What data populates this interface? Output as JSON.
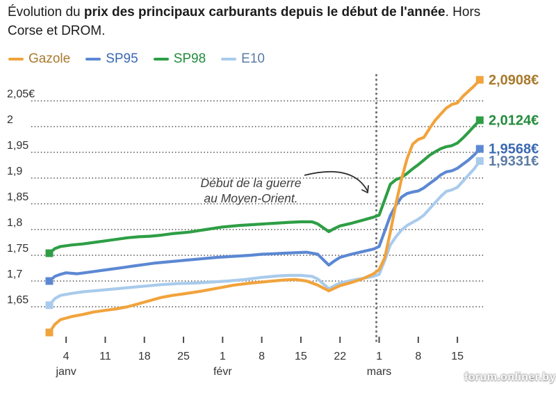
{
  "title": {
    "line1_prefix": "Évolution du ",
    "line1_bold": "prix des principaux carburants depuis le début de l'année",
    "line1_suffix": ". Hors",
    "line2": "Corse et DROM."
  },
  "legend": [
    {
      "id": "gazole",
      "label": "Gazole",
      "line_color": "#F1A33C",
      "text_color": "#A87A2B"
    },
    {
      "id": "sp95",
      "label": "SP95",
      "line_color": "#5C88D3",
      "text_color": "#3A68B2"
    },
    {
      "id": "sp98",
      "label": "SP98",
      "line_color": "#2E9E45",
      "text_color": "#218A3C"
    },
    {
      "id": "e10",
      "label": "E10",
      "line_color": "#A9CBEC",
      "text_color": "#5B7BA4"
    }
  ],
  "annotation": {
    "line1": "Début de la guerre",
    "line2": "au Moyen-Orient."
  },
  "watermark": "forum.onliner.by",
  "chart_data": {
    "type": "line",
    "title": "Évolution du prix des principaux carburants depuis le début de l'année. Hors Corse et DROM.",
    "x_unit": "days since January 1",
    "grid": true,
    "event_line": {
      "x_day": 58.5,
      "label": "Début de la guerre au Moyen-Orient."
    },
    "y_axis": {
      "currency": "EUR",
      "ylim": [
        1.57,
        2.1
      ],
      "ticks": [
        {
          "value": 2.05,
          "label": "2,05€"
        },
        {
          "value": 2.0,
          "label": "2"
        },
        {
          "value": 1.95,
          "label": "1,95"
        },
        {
          "value": 1.9,
          "label": "1,9"
        },
        {
          "value": 1.85,
          "label": "1,85"
        },
        {
          "value": 1.8,
          "label": "1,8"
        },
        {
          "value": 1.75,
          "label": "1,75"
        },
        {
          "value": 1.7,
          "label": "1,7"
        },
        {
          "value": 1.65,
          "label": "1,65"
        }
      ]
    },
    "x_axis": {
      "ticks": [
        {
          "day": 3,
          "label": "4",
          "month": "janv"
        },
        {
          "day": 10,
          "label": "11"
        },
        {
          "day": 17,
          "label": "18"
        },
        {
          "day": 24,
          "label": "25"
        },
        {
          "day": 31,
          "label": "1",
          "month": "févr"
        },
        {
          "day": 38,
          "label": "8"
        },
        {
          "day": 45,
          "label": "15"
        },
        {
          "day": 52,
          "label": "22"
        },
        {
          "day": 59,
          "label": "1",
          "month": "mars"
        },
        {
          "day": 66,
          "label": "8"
        },
        {
          "day": 73,
          "label": "15"
        }
      ]
    },
    "series": [
      {
        "id": "sp98",
        "name": "SP98",
        "color": "#2E9E45",
        "label_color": "#238C3B",
        "end_label": "2,0124€",
        "points": [
          [
            0,
            1.754
          ],
          [
            1,
            1.763
          ],
          [
            2,
            1.767
          ],
          [
            4,
            1.77
          ],
          [
            6,
            1.772
          ],
          [
            8,
            1.775
          ],
          [
            10,
            1.778
          ],
          [
            12,
            1.781
          ],
          [
            14,
            1.784
          ],
          [
            16,
            1.786
          ],
          [
            18,
            1.787
          ],
          [
            20,
            1.789
          ],
          [
            22,
            1.792
          ],
          [
            25,
            1.795
          ],
          [
            28,
            1.8
          ],
          [
            31,
            1.805
          ],
          [
            34,
            1.808
          ],
          [
            37,
            1.81
          ],
          [
            40,
            1.812
          ],
          [
            43,
            1.814
          ],
          [
            45,
            1.815
          ],
          [
            47,
            1.815
          ],
          [
            48,
            1.811
          ],
          [
            50,
            1.796
          ],
          [
            51,
            1.802
          ],
          [
            52,
            1.807
          ],
          [
            54,
            1.812
          ],
          [
            56,
            1.818
          ],
          [
            58,
            1.824
          ],
          [
            59,
            1.828
          ],
          [
            60,
            1.858
          ],
          [
            61,
            1.888
          ],
          [
            62,
            1.897
          ],
          [
            63,
            1.901
          ],
          [
            64,
            1.909
          ],
          [
            65,
            1.918
          ],
          [
            66,
            1.926
          ],
          [
            67,
            1.935
          ],
          [
            68,
            1.944
          ],
          [
            69,
            1.951
          ],
          [
            70,
            1.957
          ],
          [
            71,
            1.961
          ],
          [
            72,
            1.963
          ],
          [
            73,
            1.968
          ],
          [
            74,
            1.978
          ],
          [
            75,
            1.989
          ],
          [
            76,
            2.001
          ],
          [
            77,
            2.0124
          ]
        ]
      },
      {
        "id": "sp95",
        "name": "SP95",
        "color": "#5C88D3",
        "label_color": "#3A68B2",
        "end_label": "1,9568€",
        "points": [
          [
            0,
            1.7
          ],
          [
            1,
            1.709
          ],
          [
            2,
            1.713
          ],
          [
            3,
            1.716
          ],
          [
            5,
            1.714
          ],
          [
            7,
            1.717
          ],
          [
            9,
            1.72
          ],
          [
            11,
            1.723
          ],
          [
            13,
            1.726
          ],
          [
            15,
            1.729
          ],
          [
            17,
            1.732
          ],
          [
            19,
            1.735
          ],
          [
            21,
            1.737
          ],
          [
            24,
            1.74
          ],
          [
            27,
            1.743
          ],
          [
            30,
            1.746
          ],
          [
            33,
            1.748
          ],
          [
            36,
            1.75
          ],
          [
            38,
            1.752
          ],
          [
            40,
            1.753
          ],
          [
            42,
            1.754
          ],
          [
            44,
            1.755
          ],
          [
            46,
            1.756
          ],
          [
            48,
            1.752
          ],
          [
            50,
            1.731
          ],
          [
            51,
            1.739
          ],
          [
            52,
            1.746
          ],
          [
            54,
            1.752
          ],
          [
            56,
            1.757
          ],
          [
            58,
            1.762
          ],
          [
            59,
            1.767
          ],
          [
            60,
            1.797
          ],
          [
            61,
            1.827
          ],
          [
            62,
            1.847
          ],
          [
            63,
            1.863
          ],
          [
            64,
            1.87
          ],
          [
            65,
            1.873
          ],
          [
            66,
            1.875
          ],
          [
            67,
            1.881
          ],
          [
            68,
            1.889
          ],
          [
            69,
            1.897
          ],
          [
            70,
            1.906
          ],
          [
            71,
            1.912
          ],
          [
            72,
            1.914
          ],
          [
            73,
            1.919
          ],
          [
            74,
            1.927
          ],
          [
            75,
            1.935
          ],
          [
            76,
            1.945
          ],
          [
            77,
            1.9568
          ]
        ]
      },
      {
        "id": "e10",
        "name": "E10",
        "color": "#A9CBEC",
        "label_color": "#5B7BA4",
        "end_label": "1,9331€",
        "points": [
          [
            0,
            1.653
          ],
          [
            1,
            1.666
          ],
          [
            2,
            1.672
          ],
          [
            4,
            1.676
          ],
          [
            6,
            1.679
          ],
          [
            8,
            1.681
          ],
          [
            10,
            1.683
          ],
          [
            12,
            1.685
          ],
          [
            14,
            1.687
          ],
          [
            16,
            1.689
          ],
          [
            18,
            1.691
          ],
          [
            20,
            1.693
          ],
          [
            23,
            1.695
          ],
          [
            26,
            1.696
          ],
          [
            29,
            1.698
          ],
          [
            32,
            1.7
          ],
          [
            35,
            1.703
          ],
          [
            38,
            1.707
          ],
          [
            41,
            1.71
          ],
          [
            43,
            1.711
          ],
          [
            45,
            1.711
          ],
          [
            47,
            1.709
          ],
          [
            48,
            1.704
          ],
          [
            50,
            1.685
          ],
          [
            51,
            1.691
          ],
          [
            52,
            1.696
          ],
          [
            54,
            1.701
          ],
          [
            56,
            1.705
          ],
          [
            58,
            1.709
          ],
          [
            59,
            1.713
          ],
          [
            60,
            1.74
          ],
          [
            61,
            1.77
          ],
          [
            62,
            1.786
          ],
          [
            63,
            1.799
          ],
          [
            64,
            1.808
          ],
          [
            65,
            1.814
          ],
          [
            66,
            1.82
          ],
          [
            67,
            1.828
          ],
          [
            68,
            1.84
          ],
          [
            69,
            1.852
          ],
          [
            70,
            1.864
          ],
          [
            71,
            1.874
          ],
          [
            72,
            1.877
          ],
          [
            73,
            1.882
          ],
          [
            74,
            1.894
          ],
          [
            75,
            1.906
          ],
          [
            76,
            1.918
          ],
          [
            77,
            1.9331
          ]
        ]
      },
      {
        "id": "gazole",
        "name": "Gazole",
        "color": "#F1A33C",
        "label_color": "#A87A2B",
        "end_label": "2,0908€",
        "points": [
          [
            0,
            1.6
          ],
          [
            1,
            1.616
          ],
          [
            2,
            1.625
          ],
          [
            4,
            1.631
          ],
          [
            6,
            1.635
          ],
          [
            8,
            1.64
          ],
          [
            10,
            1.643
          ],
          [
            12,
            1.646
          ],
          [
            14,
            1.65
          ],
          [
            16,
            1.656
          ],
          [
            18,
            1.662
          ],
          [
            20,
            1.668
          ],
          [
            22,
            1.672
          ],
          [
            24,
            1.675
          ],
          [
            27,
            1.68
          ],
          [
            30,
            1.686
          ],
          [
            33,
            1.692
          ],
          [
            36,
            1.696
          ],
          [
            39,
            1.699
          ],
          [
            42,
            1.702
          ],
          [
            44,
            1.703
          ],
          [
            46,
            1.7
          ],
          [
            48,
            1.692
          ],
          [
            50,
            1.681
          ],
          [
            51,
            1.686
          ],
          [
            52,
            1.691
          ],
          [
            54,
            1.697
          ],
          [
            56,
            1.704
          ],
          [
            58,
            1.714
          ],
          [
            59,
            1.722
          ],
          [
            60,
            1.745
          ],
          [
            61,
            1.795
          ],
          [
            62,
            1.85
          ],
          [
            63,
            1.898
          ],
          [
            64,
            1.938
          ],
          [
            65,
            1.966
          ],
          [
            66,
            1.975
          ],
          [
            67,
            1.979
          ],
          [
            68,
            1.996
          ],
          [
            69,
            2.012
          ],
          [
            70,
            2.024
          ],
          [
            71,
            2.036
          ],
          [
            72,
            2.043
          ],
          [
            73,
            2.046
          ],
          [
            74,
            2.059
          ],
          [
            75,
            2.069
          ],
          [
            76,
            2.079
          ],
          [
            77,
            2.0908
          ]
        ]
      }
    ]
  }
}
